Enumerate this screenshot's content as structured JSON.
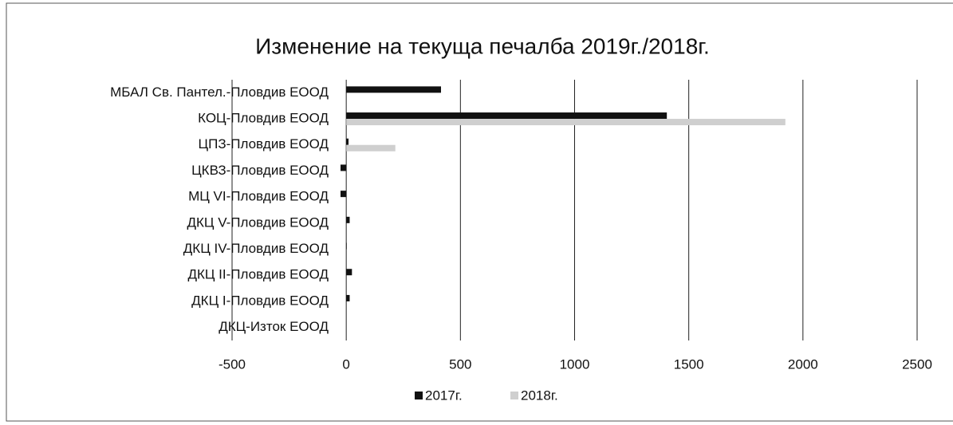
{
  "chart_data": {
    "type": "bar",
    "orientation": "horizontal",
    "title": "Изменение на текуща печалба 2019г./2018г.",
    "categories": [
      "МБАЛ Св. Пантел.-Пловдив ЕООД",
      "КОЦ-Пловдив ЕООД",
      "ЦПЗ-Пловдив ЕООД",
      "ЦКВЗ-Пловдив ЕООД",
      "МЦ VI-Пловдив ЕООД",
      "ДКЦ V-Пловдив ЕООД",
      "ДКЦ IV-Пловдив ЕООД",
      "ДКЦ II-Пловдив ЕООД",
      "ДКЦ I-Пловдив ЕООД",
      "ДКЦ-Изток ЕООД"
    ],
    "series": [
      {
        "name": "2017г.",
        "color": "#111111",
        "values": [
          415,
          1404,
          10,
          -25,
          -25,
          15,
          2,
          25,
          15,
          0
        ]
      },
      {
        "name": "2018г.",
        "color": "#cfcfcf",
        "values": [
          0,
          1923,
          215,
          0,
          0,
          0,
          0,
          0,
          0,
          0
        ]
      }
    ],
    "xlim": [
      -500,
      2500
    ],
    "xticks": [
      -500,
      0,
      500,
      1000,
      1500,
      2000,
      2500
    ],
    "grid": true,
    "legend": "bottom"
  }
}
